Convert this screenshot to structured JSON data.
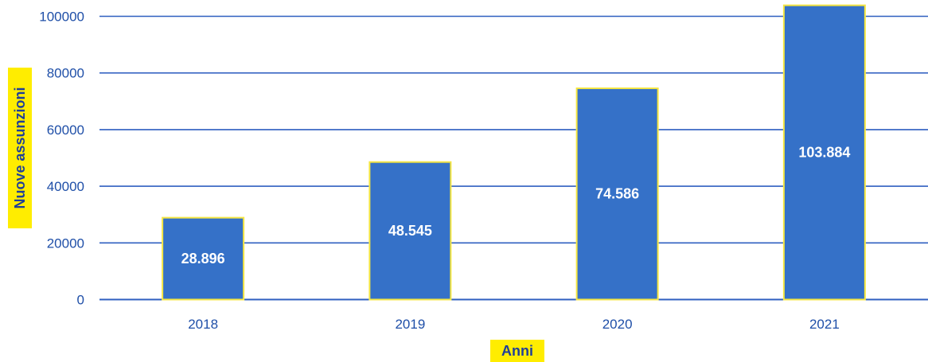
{
  "chart_data": {
    "type": "bar",
    "categories": [
      "2018",
      "2019",
      "2020",
      "2021"
    ],
    "values": [
      28896,
      48545,
      74586,
      103884
    ],
    "data_labels": [
      "28.896",
      "48.545",
      "74.586",
      "103.884"
    ],
    "xlabel": "Anni",
    "ylabel": "Nuove assunzioni",
    "ylim": [
      0,
      100000
    ],
    "yticks": [
      "0",
      "20000",
      "40000",
      "60000",
      "80000",
      "100000"
    ],
    "ytick_values": [
      0,
      20000,
      40000,
      60000,
      80000,
      100000
    ],
    "grid": true,
    "legend": "none",
    "colors": {
      "bar_fill": "#3571c8",
      "bar_border": "#f5e642",
      "gridline": "#2f5fc0",
      "tick_text": "#1f4fa8",
      "axis_title_bg": "#ffed00",
      "axis_title_text": "#1f3f99"
    }
  }
}
